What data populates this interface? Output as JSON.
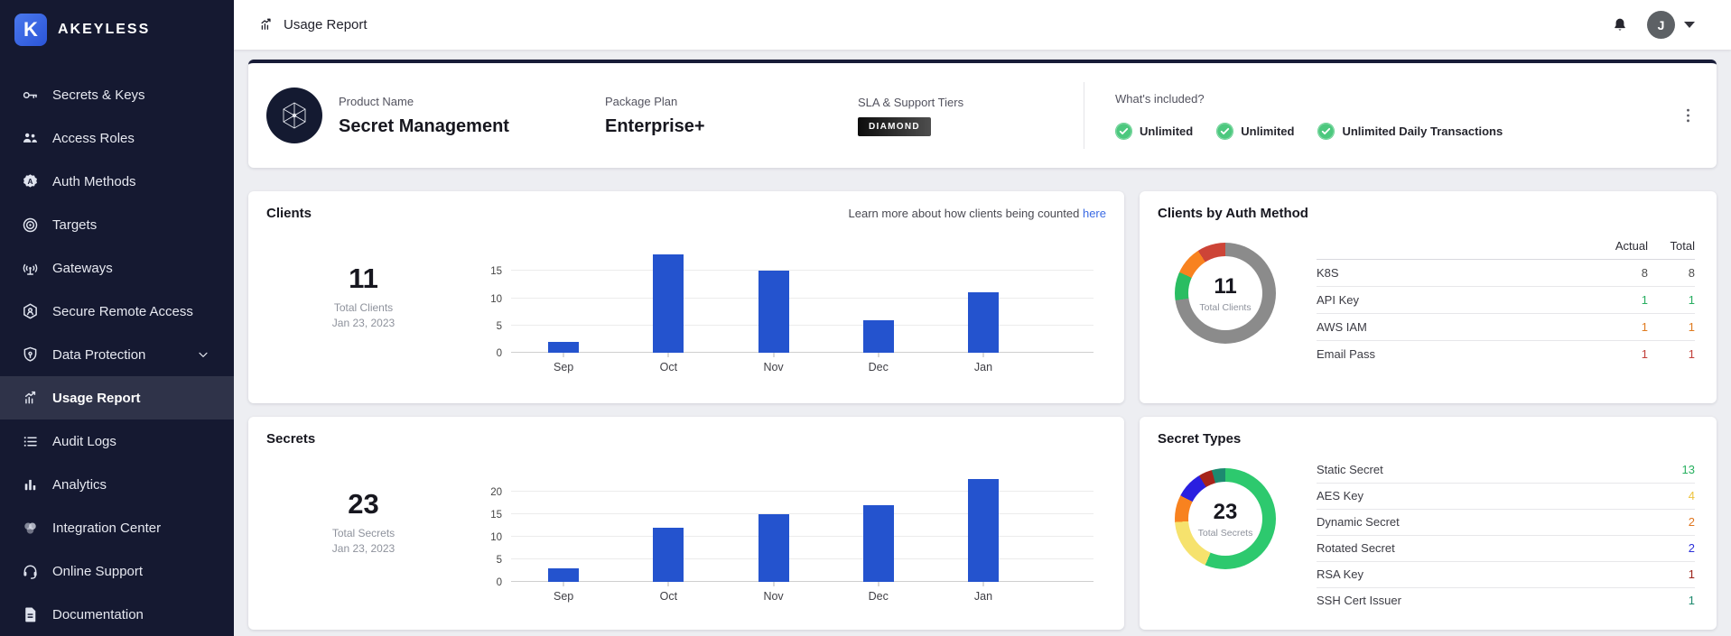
{
  "brand": {
    "name": "AKEYLESS",
    "logo_letter": "K"
  },
  "sidebar": {
    "items": [
      {
        "label": "Secrets & Keys",
        "icon": "key-icon"
      },
      {
        "label": "Access Roles",
        "icon": "people-icon"
      },
      {
        "label": "Auth Methods",
        "icon": "auth-badge-icon"
      },
      {
        "label": "Targets",
        "icon": "target-icon"
      },
      {
        "label": "Gateways",
        "icon": "antenna-icon"
      },
      {
        "label": "Secure Remote Access",
        "icon": "remote-access-icon"
      },
      {
        "label": "Data Protection",
        "icon": "shield-icon",
        "chevron": true
      },
      {
        "label": "Usage Report",
        "icon": "usage-report-icon",
        "active": true
      },
      {
        "label": "Audit Logs",
        "icon": "list-icon"
      },
      {
        "label": "Analytics",
        "icon": "bar-chart-icon"
      },
      {
        "label": "Integration Center",
        "icon": "venn-icon"
      },
      {
        "label": "Online Support",
        "icon": "headset-icon"
      },
      {
        "label": "Documentation",
        "icon": "document-icon"
      }
    ]
  },
  "topbar": {
    "title": "Usage Report",
    "avatar_initial": "J"
  },
  "product_card": {
    "product_label": "Product Name",
    "product_value": "Secret Management",
    "plan_label": "Package Plan",
    "plan_value": "Enterprise+",
    "sla_label": "SLA & Support Tiers",
    "sla_badge": "DIAMOND",
    "included_label": "What's included?",
    "included_items": [
      "Unlimited",
      "Unlimited",
      "Unlimited Daily Transactions"
    ]
  },
  "clients_card": {
    "title": "Clients",
    "learn_more_text": "Learn more about how clients being counted",
    "learn_more_link": "here",
    "total": "11",
    "total_label": "Total Clients",
    "date": "Jan 23, 2023"
  },
  "secrets_card": {
    "title": "Secrets",
    "total": "23",
    "total_label": "Total Secrets",
    "date": "Jan 23, 2023"
  },
  "auth_card": {
    "title": "Clients by Auth Method",
    "col_actual": "Actual",
    "col_total": "Total",
    "rows": [
      {
        "label": "K8S",
        "actual": "8",
        "total": "8",
        "color": "#4d4d4d"
      },
      {
        "label": "API Key",
        "actual": "1",
        "total": "1",
        "color": "#27ae60"
      },
      {
        "label": "AWS IAM",
        "actual": "1",
        "total": "1",
        "color": "#e07b1f"
      },
      {
        "label": "Email Pass",
        "actual": "1",
        "total": "1",
        "color": "#c2403a"
      }
    ]
  },
  "types_card": {
    "title": "Secret Types",
    "rows": [
      {
        "label": "Static Secret",
        "value": "13",
        "color": "#27b05f"
      },
      {
        "label": "AES Key",
        "value": "4",
        "color": "#eec33e"
      },
      {
        "label": "Dynamic Secret",
        "value": "2",
        "color": "#e0761f"
      },
      {
        "label": "Rotated Secret",
        "value": "2",
        "color": "#2b2fd8"
      },
      {
        "label": "RSA Key",
        "value": "1",
        "color": "#9c231a"
      },
      {
        "label": "SSH Cert Issuer",
        "value": "1",
        "color": "#1d8a6e"
      }
    ]
  },
  "chart_data": [
    {
      "type": "bar",
      "id": "clients-chart",
      "title": "Clients",
      "categories": [
        "Sep",
        "Oct",
        "Nov",
        "Dec",
        "Jan"
      ],
      "values": [
        2,
        18,
        15,
        6,
        11
      ],
      "yticks": [
        0,
        5,
        10,
        15
      ],
      "ylim": [
        0,
        19.5
      ],
      "color": "#2453ce",
      "grid": true,
      "legend": "none",
      "xlabel": "",
      "ylabel": ""
    },
    {
      "type": "bar",
      "id": "secrets-chart",
      "title": "Secrets",
      "categories": [
        "Sep",
        "Oct",
        "Nov",
        "Dec",
        "Jan"
      ],
      "values": [
        3,
        12,
        15,
        17,
        23
      ],
      "yticks": [
        0,
        5,
        10,
        15,
        20
      ],
      "ylim": [
        0,
        24.5
      ],
      "color": "#2453ce",
      "grid": true,
      "legend": "none",
      "xlabel": "",
      "ylabel": ""
    },
    {
      "type": "donut",
      "id": "auth-donut",
      "title": "Clients by Auth Method",
      "labels": [
        "K8S",
        "API Key",
        "AWS IAM",
        "Email Pass"
      ],
      "values": [
        8,
        1,
        1,
        1
      ],
      "colors": [
        "#8b8b8b",
        "#2abd62",
        "#f8821f",
        "#cd4437"
      ],
      "center_value": "11",
      "center_label": "Total Clients"
    },
    {
      "type": "donut",
      "id": "types-donut",
      "title": "Secret Types",
      "labels": [
        "Static Secret",
        "AES Key",
        "Dynamic Secret",
        "Rotated Secret",
        "RSA Key",
        "SSH Cert Issuer"
      ],
      "values": [
        13,
        4,
        2,
        2,
        1,
        1
      ],
      "colors": [
        "#2dc96e",
        "#f6e26d",
        "#f8821f",
        "#2a1fe0",
        "#a6241a",
        "#1d8a70"
      ],
      "center_value": "23",
      "center_label": "Total Secrets"
    }
  ]
}
